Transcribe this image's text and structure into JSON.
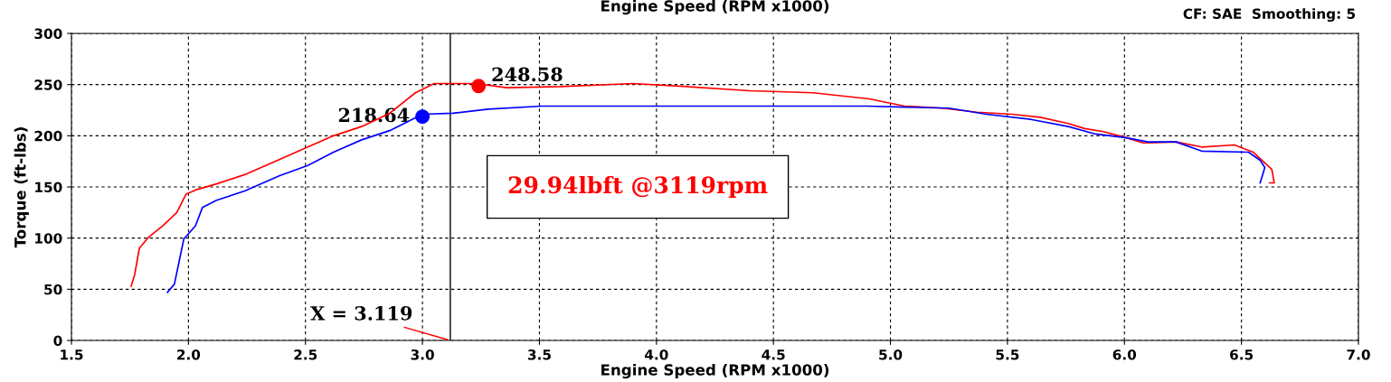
{
  "chart_data": {
    "type": "line",
    "title": "Engine Speed (RPM x1000)",
    "xlabel": "Engine Speed (RPM x1000)",
    "ylabel": "Torque (ft-lbs)",
    "xlim": [
      1.5,
      7.0
    ],
    "xticks": [
      {
        "value": 1.5,
        "label": "1.5"
      },
      {
        "value": 2.0,
        "label": "2.0"
      },
      {
        "value": 2.5,
        "label": "2.5"
      },
      {
        "value": 3.0,
        "label": "3.0"
      },
      {
        "value": 3.5,
        "label": "3.5"
      },
      {
        "value": 4.0,
        "label": "4.0"
      },
      {
        "value": 4.5,
        "label": "4.5"
      },
      {
        "value": 5.0,
        "label": "5.0"
      },
      {
        "value": 5.5,
        "label": "5.5"
      },
      {
        "value": 6.0,
        "label": "6.0"
      },
      {
        "value": 6.5,
        "label": "6.5"
      },
      {
        "value": 7.0,
        "label": "7.0"
      }
    ],
    "ylim": [
      0,
      300
    ],
    "yticks": [
      0,
      50,
      100,
      150,
      200,
      250,
      300
    ],
    "grid": true,
    "line_style": "solid",
    "marker": "none",
    "series": [
      {
        "color": "#ff0000",
        "x": [
          1.755,
          1.77,
          1.79,
          1.83,
          1.89,
          1.95,
          1.99,
          2.03,
          2.12,
          2.24,
          2.39,
          2.51,
          2.62,
          2.74,
          2.86,
          2.97,
          3.05,
          3.13,
          3.23,
          3.36,
          3.59,
          3.9,
          4.13,
          4.4,
          4.67,
          4.91,
          5.06,
          5.22,
          5.37,
          5.52,
          5.64,
          5.76,
          5.83,
          5.91,
          6.01,
          6.08,
          6.22,
          6.33,
          6.47,
          6.55,
          6.63,
          6.64,
          6.62
        ],
        "values": [
          53,
          64,
          90,
          101,
          112,
          125,
          143,
          147,
          153,
          162,
          177,
          189,
          200,
          209,
          222,
          242,
          251,
          251,
          251,
          247,
          248,
          251,
          248,
          244,
          242,
          236,
          229,
          227,
          223,
          221,
          218,
          212,
          207,
          204,
          198,
          193,
          194,
          189,
          191,
          184,
          167,
          154,
          154
        ]
      },
      {
        "color": "#0000ff",
        "x": [
          1.91,
          1.94,
          1.96,
          1.98,
          2.03,
          2.06,
          2.12,
          2.24,
          2.39,
          2.51,
          2.62,
          2.74,
          2.86,
          3.0,
          3.13,
          3.28,
          3.51,
          3.9,
          4.29,
          4.67,
          4.9,
          5.06,
          5.25,
          5.41,
          5.6,
          5.76,
          5.87,
          6.01,
          6.1,
          6.22,
          6.33,
          6.53,
          6.58,
          6.6,
          6.58
        ],
        "values": [
          47,
          55,
          77,
          99,
          112,
          130,
          137,
          146,
          161,
          171,
          184,
          196,
          205,
          221,
          222,
          226,
          229,
          229,
          229,
          229,
          229,
          228,
          227,
          221,
          216,
          209,
          202,
          198,
          194,
          194,
          185,
          184,
          176,
          169,
          154
        ]
      },
      {
        "type": "scatter",
        "marker": "circle",
        "color": "#ff0000",
        "x": [
          3.24
        ],
        "values": [
          248.58
        ],
        "value_labels": [
          "248.58"
        ]
      },
      {
        "type": "scatter",
        "marker": "circle",
        "color": "#0000ff",
        "x": [
          3.0
        ],
        "values": [
          218.64
        ],
        "value_labels": [
          "218.64"
        ]
      }
    ],
    "ref_lines": [
      {
        "axis": "x",
        "value": 3.119,
        "label": "X = 3.119",
        "color": "#000000"
      }
    ],
    "annotations": [
      "29.94lbft @3119rpm",
      "CF: SAE  Smoothing: 5"
    ]
  }
}
